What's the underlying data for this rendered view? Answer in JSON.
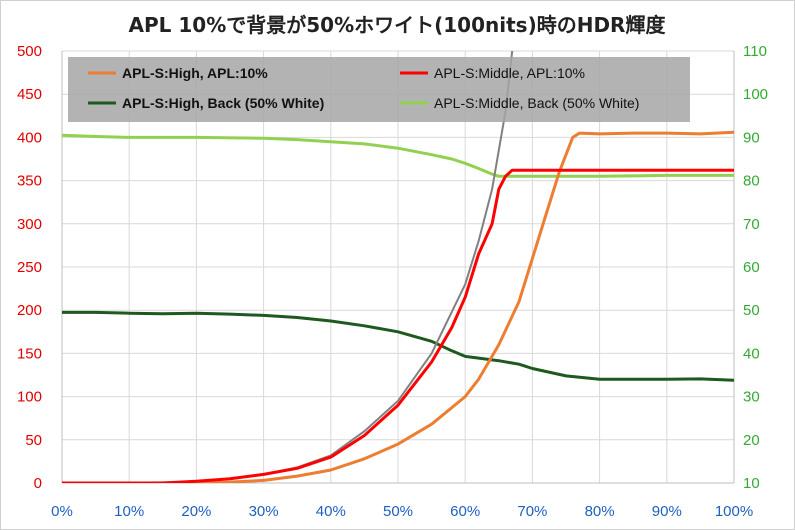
{
  "chart_data": {
    "type": "line",
    "title": "APL 10%で背景が50%ホワイト(100nits)時のHDR輝度",
    "x_ticks": [
      "0%",
      "10%",
      "20%",
      "30%",
      "40%",
      "50%",
      "60%",
      "70%",
      "80%",
      "90%",
      "100%"
    ],
    "y_left_ticks": [
      "0",
      "50",
      "100",
      "150",
      "200",
      "250",
      "300",
      "350",
      "400",
      "450",
      "500"
    ],
    "y_right_ticks": [
      "10",
      "20",
      "30",
      "40",
      "50",
      "60",
      "70",
      "80",
      "90",
      "100",
      "110"
    ],
    "xlim": [
      0,
      100
    ],
    "ylim_left": [
      0,
      500
    ],
    "ylim_right": [
      10,
      110
    ],
    "grid": true,
    "legend_placement": "top",
    "colors": {
      "apl_high": "#ed7d31",
      "apl_middle": "#ff0000",
      "back_high": "#1e5a1e",
      "back_middle": "#92d050",
      "reference": "#808080",
      "tick_left": "#e00000",
      "tick_right": "#33aa33",
      "tick_x": "#1f5fbf"
    },
    "series": [
      {
        "name": "APL-S:High, APL:10%",
        "axis": "left",
        "bold": true,
        "color": "#ed7d31",
        "x": [
          0,
          10,
          20,
          25,
          30,
          35,
          40,
          45,
          50,
          55,
          60,
          62,
          65,
          68,
          70,
          72,
          74,
          76,
          77,
          80,
          85,
          90,
          95,
          100
        ],
        "y": [
          0,
          0,
          0,
          1,
          3,
          8,
          15,
          28,
          45,
          68,
          100,
          120,
          160,
          210,
          260,
          310,
          360,
          400,
          405,
          404,
          405,
          405,
          404,
          406
        ]
      },
      {
        "name": "APL-S:Middle, APL:10%",
        "axis": "left",
        "bold": false,
        "color": "#ff0000",
        "x": [
          0,
          10,
          15,
          20,
          25,
          30,
          35,
          40,
          45,
          50,
          55,
          58,
          60,
          62,
          64,
          65,
          66,
          67,
          70,
          80,
          90,
          100
        ],
        "y": [
          0,
          0,
          0,
          2,
          5,
          10,
          17,
          30,
          55,
          90,
          140,
          180,
          215,
          265,
          300,
          340,
          355,
          362,
          362,
          362,
          362,
          362
        ]
      },
      {
        "name": "APL-S:High, Back (50% White)",
        "axis": "right",
        "bold": true,
        "color": "#1e5a1e",
        "x": [
          0,
          5,
          10,
          15,
          20,
          25,
          30,
          35,
          40,
          45,
          50,
          55,
          58,
          60,
          65,
          68,
          70,
          75,
          80,
          90,
          95,
          100
        ],
        "y": [
          49.5,
          49.5,
          49.3,
          49.2,
          49.3,
          49.1,
          48.8,
          48.3,
          47.5,
          46.4,
          45,
          42.8,
          40.6,
          39.3,
          38.3,
          37.5,
          36.5,
          34.8,
          34,
          34,
          34.1,
          33.8
        ]
      },
      {
        "name": "APL-S:Middle, Back (50% White)",
        "axis": "right",
        "bold": false,
        "color": "#92d050",
        "x": [
          0,
          5,
          10,
          20,
          30,
          35,
          40,
          45,
          50,
          55,
          58,
          60,
          62,
          64,
          65,
          66,
          70,
          80,
          90,
          100
        ],
        "y": [
          90.5,
          90.2,
          90,
          90,
          89.8,
          89.5,
          89,
          88.5,
          87.5,
          86,
          85,
          84,
          82.8,
          81.5,
          81,
          81,
          81,
          81,
          81.2,
          81.2
        ]
      },
      {
        "name": "",
        "axis": "left",
        "color": "#808080",
        "x": [
          0,
          20,
          25,
          30,
          35,
          40,
          45,
          50,
          55,
          60,
          62,
          64,
          66,
          67
        ],
        "y": [
          0,
          1,
          5,
          10,
          18,
          32,
          60,
          95,
          150,
          230,
          280,
          340,
          430,
          500
        ]
      }
    ]
  }
}
